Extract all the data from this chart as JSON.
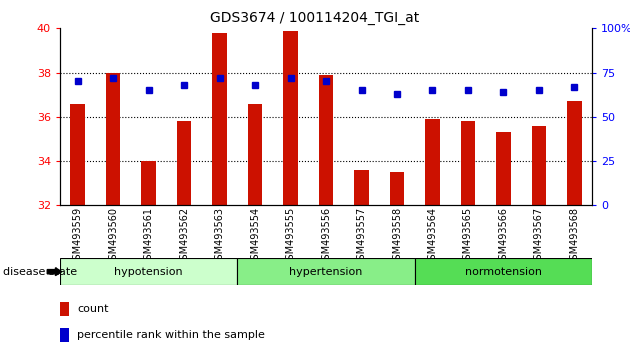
{
  "title": "GDS3674 / 100114204_TGI_at",
  "samples": [
    "GSM493559",
    "GSM493560",
    "GSM493561",
    "GSM493562",
    "GSM493563",
    "GSM493554",
    "GSM493555",
    "GSM493556",
    "GSM493557",
    "GSM493558",
    "GSM493564",
    "GSM493565",
    "GSM493566",
    "GSM493567",
    "GSM493568"
  ],
  "counts": [
    36.6,
    38.0,
    34.0,
    35.8,
    39.8,
    36.6,
    39.9,
    37.9,
    33.6,
    33.5,
    35.9,
    35.8,
    35.3,
    35.6,
    36.7
  ],
  "percentile_ranks": [
    70,
    72,
    65,
    68,
    72,
    68,
    72,
    70,
    65,
    63,
    65,
    65,
    64,
    65,
    67
  ],
  "ylim_left": [
    32,
    40
  ],
  "ylim_right": [
    0,
    100
  ],
  "yticks_left": [
    32,
    34,
    36,
    38,
    40
  ],
  "yticks_right": [
    0,
    25,
    50,
    75,
    100
  ],
  "bar_color": "#cc1100",
  "dot_color": "#0000cc",
  "groups": [
    {
      "label": "hypotension",
      "start": 0,
      "end": 5,
      "color": "#ccffcc"
    },
    {
      "label": "hypertension",
      "start": 5,
      "end": 10,
      "color": "#88ee88"
    },
    {
      "label": "normotension",
      "start": 10,
      "end": 15,
      "color": "#55dd55"
    }
  ],
  "legend": [
    {
      "label": "count",
      "color": "#cc1100"
    },
    {
      "label": "percentile rank within the sample",
      "color": "#0000cc"
    }
  ]
}
